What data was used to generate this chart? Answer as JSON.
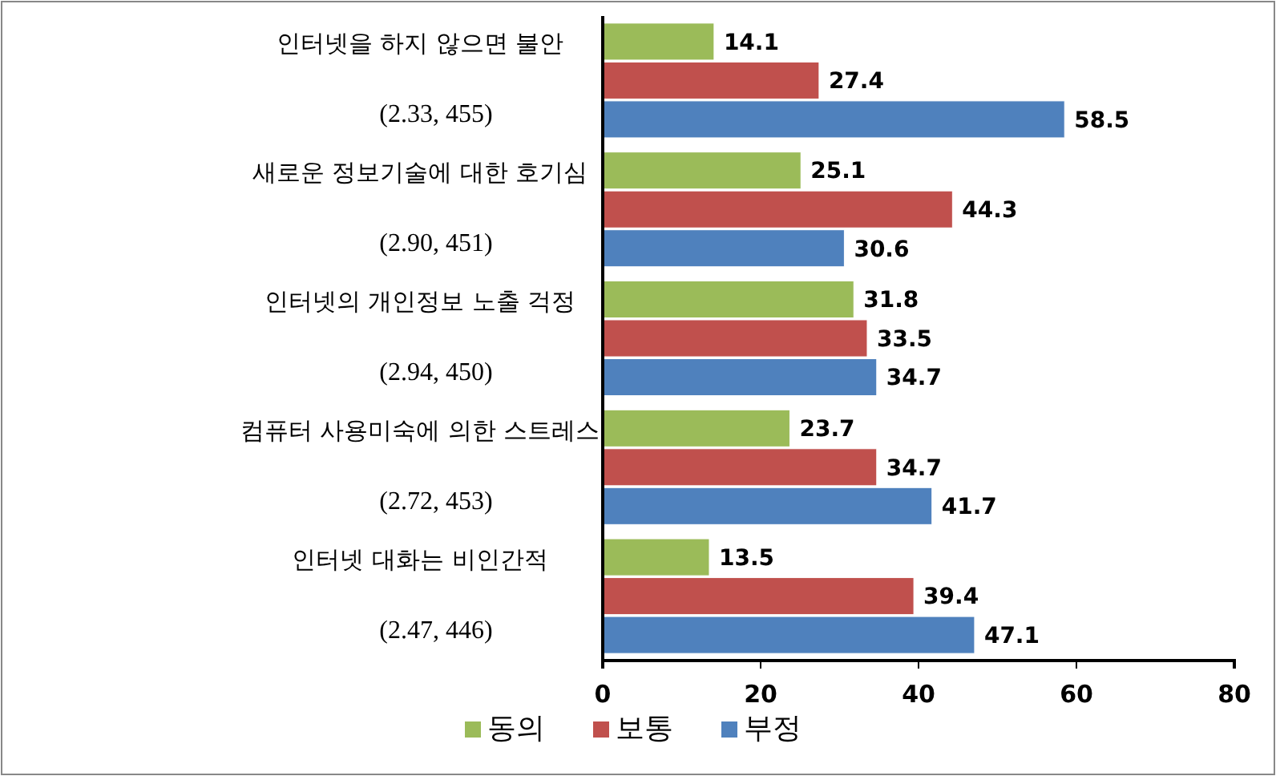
{
  "chart_data": {
    "type": "bar",
    "orientation": "horizontal",
    "categories": [
      "인터넷을 하지 않으면 불안\n(2.33, 455)",
      "새로운 정보기술에 대한 호기심\n(2.90, 451)",
      "인터넷의 개인정보 노출 걱정\n(2.94, 450)",
      "컴퓨터 사용미숙에 의한 스트레스\n(2.72, 453)",
      "인터넷 대화는 비인간적\n(2.47, 446)"
    ],
    "series": [
      {
        "name": "동의",
        "color": "#9bbb59",
        "values": [
          14.1,
          25.1,
          31.8,
          23.7,
          13.5
        ]
      },
      {
        "name": "보통",
        "color": "#c0504d",
        "values": [
          27.4,
          44.3,
          33.5,
          34.7,
          39.4
        ]
      },
      {
        "name": "부정",
        "color": "#4f81bd",
        "values": [
          58.5,
          30.6,
          34.7,
          41.7,
          47.1
        ]
      }
    ],
    "xlim": [
      0,
      80
    ],
    "xticks": [
      0,
      20,
      40,
      60,
      80
    ],
    "data_labels": true,
    "legend": "bottom",
    "grid": false
  }
}
